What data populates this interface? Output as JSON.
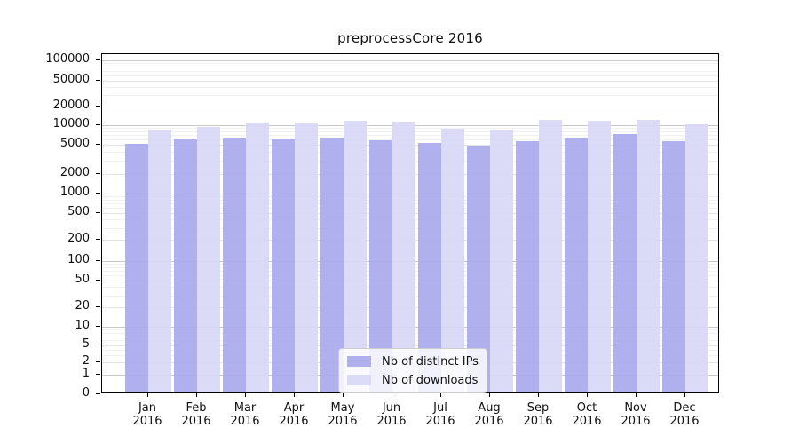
{
  "chart_data": {
    "type": "bar",
    "title": "preprocessCore 2016",
    "categories": [
      "Jan",
      "Feb",
      "Mar",
      "Apr",
      "May",
      "Jun",
      "Jul",
      "Aug",
      "Sep",
      "Oct",
      "Nov",
      "Dec"
    ],
    "year_label": "2016",
    "series": [
      {
        "name": "Nb of distinct IPs",
        "color": "#a9a9ee",
        "values": [
          4900,
          5600,
          5950,
          5750,
          6050,
          5500,
          4950,
          4600,
          5350,
          6050,
          6850,
          5350
        ]
      },
      {
        "name": "Nb of downloads",
        "color": "#d8d8f7",
        "values": [
          8100,
          8800,
          10350,
          10000,
          11050,
          10700,
          8300,
          8000,
          11400,
          11050,
          11600,
          9750
        ]
      }
    ],
    "yscale": "log-like",
    "ylim": [
      0,
      100000
    ],
    "y_ticks": [
      100000,
      50000,
      20000,
      10000,
      5000,
      2000,
      1000,
      500,
      200,
      100,
      50,
      20,
      10,
      5,
      2,
      1,
      0
    ],
    "y_tick_labels": [
      "100000",
      "50000",
      "20000",
      "10000",
      "5000",
      "2000",
      "1000",
      "500",
      "200",
      "100",
      "50",
      "20",
      "10",
      "5",
      "2",
      "1",
      "0"
    ],
    "grid": true,
    "legend_position": "lower center"
  },
  "legend": {
    "items": [
      {
        "label": "Nb of distinct IPs",
        "color": "#a9a9ee"
      },
      {
        "label": "Nb of downloads",
        "color": "#d8d8f7"
      }
    ]
  }
}
